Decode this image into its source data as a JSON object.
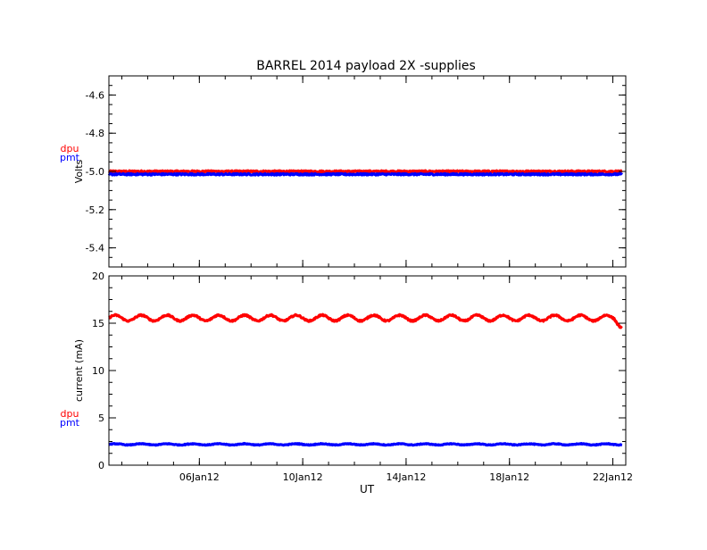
{
  "title": "BARREL 2014 payload 2X -supplies",
  "x_axis_label": "UT",
  "colors": {
    "dpu": "#ff0000",
    "pmt": "#0000ff",
    "axis": "#000000"
  },
  "chart_data": [
    {
      "type": "line",
      "title": "BARREL 2014 payload 2X -supplies",
      "xlabel": "",
      "ylabel": "Volts",
      "ylim": [
        -5.5,
        -4.5
      ],
      "yticks": [
        -5.4,
        -5.2,
        -5.0,
        -4.8,
        -4.6
      ],
      "ytick_labels": [
        "-5.4",
        "-5.2",
        "-5.0",
        "-4.8",
        "-4.6"
      ],
      "x_range_days": [
        "2012-01-02T12:00",
        "2012-01-22T12:00"
      ],
      "xticks": [
        "06Jan12",
        "10Jan12",
        "14Jan12",
        "18Jan12",
        "22Jan12"
      ],
      "xtick_labels": [],
      "legend": "left-of-axis",
      "series": [
        {
          "name": "dpu",
          "color": "#ff0000",
          "base": -5.0,
          "amplitude": 0.0,
          "noise": 0.004,
          "period_days": 1.0,
          "end_drop": 0
        },
        {
          "name": "pmt",
          "color": "#0000ff",
          "base": -5.015,
          "amplitude": 0.0,
          "noise": 0.004,
          "period_days": 1.0,
          "end_drop": 0
        }
      ]
    },
    {
      "type": "line",
      "title": "",
      "xlabel": "UT",
      "ylabel": "current (mA)",
      "ylim": [
        0,
        20
      ],
      "yticks": [
        0,
        5,
        10,
        15,
        20
      ],
      "ytick_labels": [
        "0",
        "5",
        "10",
        "15",
        "20"
      ],
      "x_range_days": [
        "2012-01-02T12:00",
        "2012-01-22T12:00"
      ],
      "xticks": [
        "06Jan12",
        "10Jan12",
        "14Jan12",
        "18Jan12",
        "22Jan12"
      ],
      "xtick_labels": [
        "06Jan12",
        "10Jan12",
        "14Jan12",
        "18Jan12",
        "22Jan12"
      ],
      "legend": "left-of-axis",
      "series": [
        {
          "name": "dpu",
          "color": "#ff0000",
          "base": 15.55,
          "amplitude": 0.3,
          "noise": 0.08,
          "period_days": 1.0,
          "end_drop": 0.9
        },
        {
          "name": "pmt",
          "color": "#0000ff",
          "base": 2.2,
          "amplitude": 0.06,
          "noise": 0.04,
          "period_days": 1.0,
          "end_drop": 0
        }
      ]
    }
  ]
}
